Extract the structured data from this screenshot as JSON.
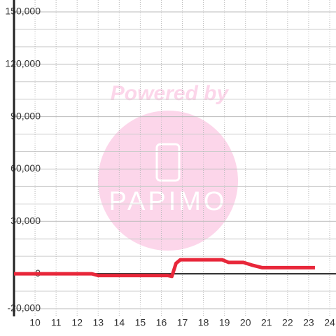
{
  "chart_data": {
    "type": "line",
    "watermark": {
      "text": "Powered by",
      "logo": "PAPIMO"
    },
    "x": [
      9,
      12.7,
      13,
      16.3,
      16.5,
      16.7,
      16.9,
      18.9,
      19.2,
      19.9,
      20.3,
      20.8,
      23.3
    ],
    "series": [
      {
        "color": "#e8273a",
        "values": [
          0,
          0,
          -1000,
          -1000,
          -1500,
          6000,
          8000,
          8000,
          6500,
          6500,
          5000,
          3500,
          3500
        ]
      }
    ],
    "xlim": [
      9,
      24.3
    ],
    "xticks": [
      10,
      11,
      12,
      13,
      14,
      15,
      16,
      17,
      18,
      19,
      20,
      21,
      22,
      23,
      24
    ],
    "ylim": [
      -20000,
      150000
    ],
    "yticks": [
      {
        "value": -20000,
        "label": "-20,000"
      },
      0,
      {
        "value": 30000,
        "label": "30,000"
      },
      {
        "value": 60000,
        "label": "60,000"
      },
      {
        "value": 90000,
        "label": "90,000"
      },
      {
        "value": 120000,
        "label": "120,000"
      },
      {
        "value": 150000,
        "label": "150,000"
      }
    ],
    "yminorticks": [
      -10000,
      10000,
      20000,
      40000,
      50000,
      70000,
      80000,
      100000,
      110000,
      130000,
      140000
    ],
    "grid": true
  }
}
